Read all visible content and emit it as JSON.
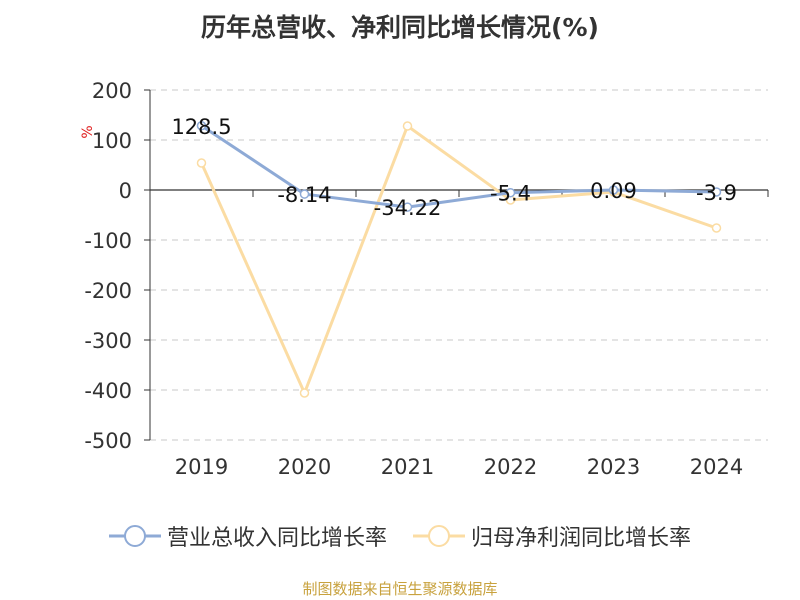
{
  "title": "历年总营收、净利同比增长情况(%)",
  "source": "制图数据来自恒生聚源数据库",
  "colors": {
    "revenue": "#8eaad6",
    "profit": "#fbdca3"
  },
  "chart_data": {
    "type": "line",
    "title": "历年总营收、净利同比增长情况(%)",
    "ylabel": "%",
    "x": [
      "2019",
      "2020",
      "2021",
      "2022",
      "2023",
      "2024"
    ],
    "ylim": [
      -500,
      200
    ],
    "yticks": [
      200,
      100,
      0,
      -100,
      -200,
      -300,
      -400,
      -500
    ],
    "grid": true,
    "legend_position": "bottom",
    "series": [
      {
        "name": "营业总收入同比增长率",
        "values": [
          128.5,
          -8.14,
          -34.22,
          -5.4,
          0.09,
          -3.9
        ],
        "labels": [
          "128.5",
          "-8.14",
          "-34.22",
          "-5.4",
          "0.09",
          "-3.9"
        ]
      },
      {
        "name": "归母净利润同比增长率",
        "values": [
          54,
          -406,
          128,
          -20,
          -4,
          -76
        ]
      }
    ]
  }
}
